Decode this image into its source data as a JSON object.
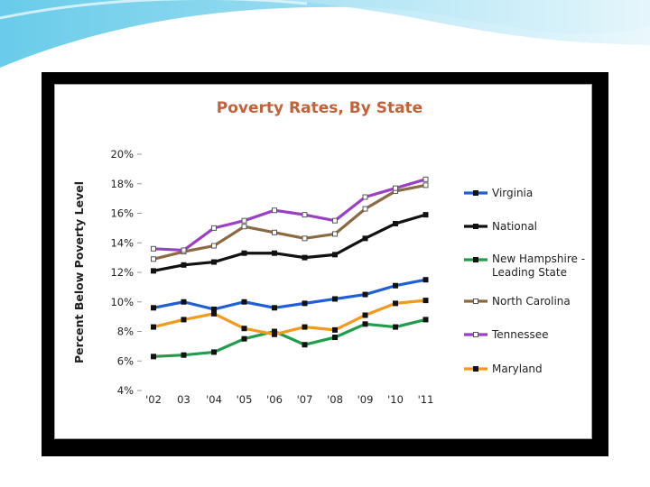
{
  "chart_data": {
    "type": "line",
    "title": "Poverty Rates, By State",
    "ylabel": "Percent Below Poverty Level",
    "xlabel": "",
    "categories": [
      "'02",
      "03",
      "'04",
      "'05",
      "'06",
      "'07",
      "'08",
      "'09",
      "'10",
      "'11"
    ],
    "ylim": [
      4,
      20
    ],
    "yticks": [
      4,
      6,
      8,
      10,
      12,
      14,
      16,
      18,
      20
    ],
    "ytick_labels": [
      "4%",
      "6%",
      "8%",
      "10%",
      "12%",
      "14%",
      "16%",
      "18%",
      "20%"
    ],
    "grid": false,
    "legend_position": "right",
    "title_color": "#c0623a",
    "series": [
      {
        "name": "Virginia",
        "color": "#1f5fd6",
        "values": [
          9.6,
          10.0,
          9.5,
          10.0,
          9.6,
          9.9,
          10.2,
          10.5,
          11.1,
          11.5
        ]
      },
      {
        "name": "National",
        "color": "#111111",
        "values": [
          12.1,
          12.5,
          12.7,
          13.3,
          13.3,
          13.0,
          13.2,
          14.3,
          15.3,
          15.9
        ]
      },
      {
        "name": "New Hampshire - Leading State",
        "color": "#1e9e4a",
        "values": [
          6.3,
          6.4,
          6.6,
          7.5,
          8.0,
          7.1,
          7.6,
          8.5,
          8.3,
          8.8
        ]
      },
      {
        "name": "North Carolina",
        "color": "#8b6a42",
        "values": [
          12.9,
          13.4,
          13.8,
          15.1,
          14.7,
          14.3,
          14.6,
          16.3,
          17.5,
          17.9
        ]
      },
      {
        "name": "Tennessee",
        "color": "#9b3fc6",
        "values": [
          13.6,
          13.5,
          15.0,
          15.5,
          16.2,
          15.9,
          15.5,
          17.1,
          17.7,
          18.3
        ]
      },
      {
        "name": "Maryland",
        "color": "#f39a1c",
        "values": [
          8.3,
          8.8,
          9.2,
          8.2,
          7.8,
          8.3,
          8.1,
          9.1,
          9.9,
          10.1
        ]
      }
    ]
  }
}
